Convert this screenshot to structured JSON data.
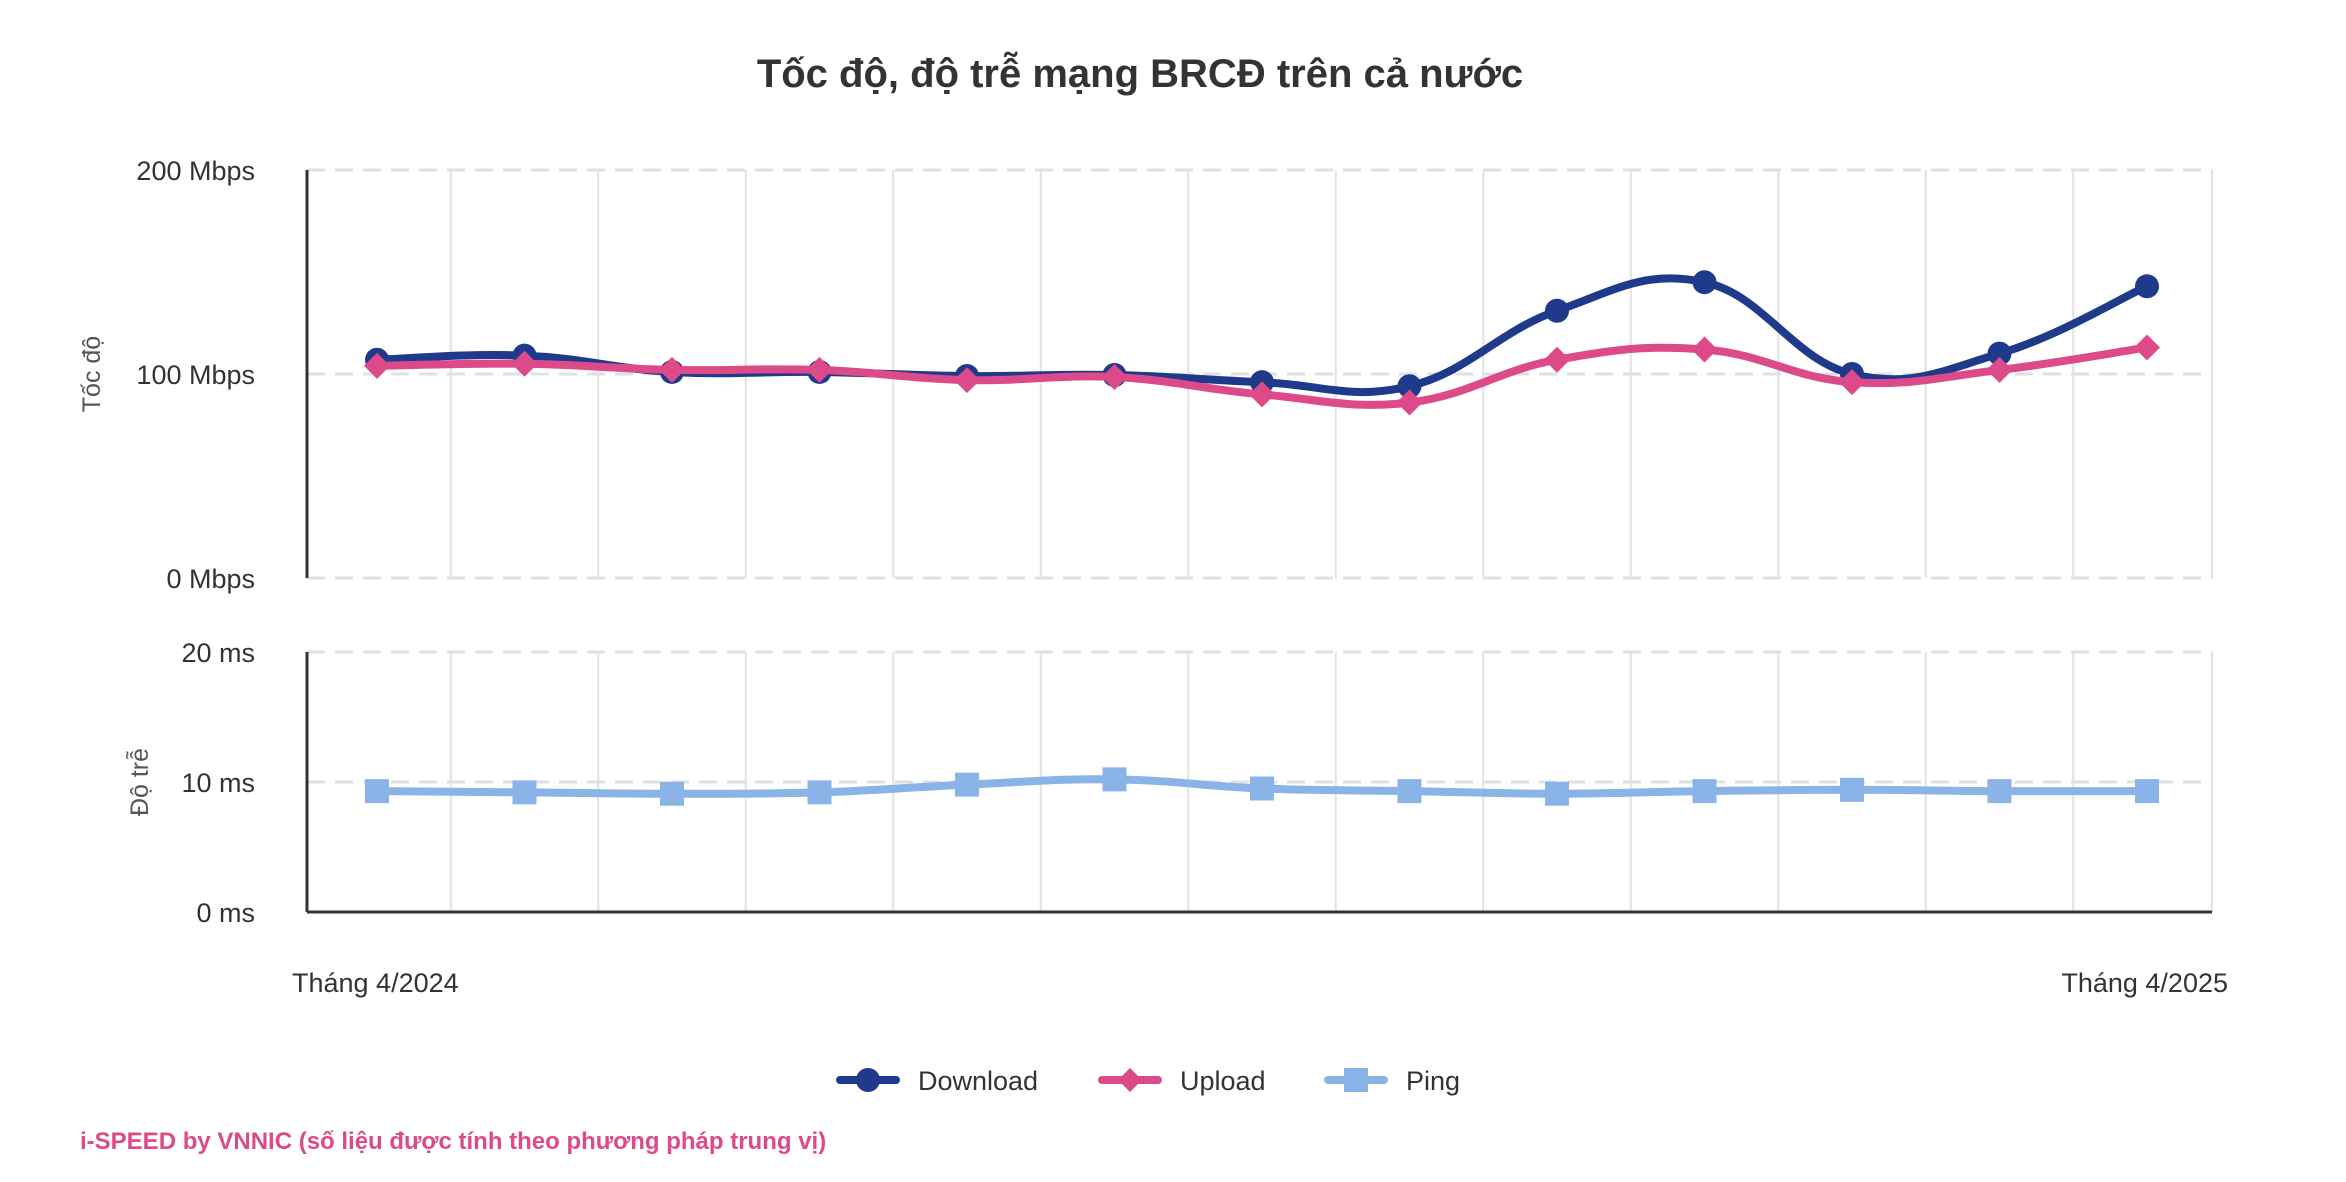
{
  "chart_data": {
    "type": "line",
    "title": "Tốc độ, độ trễ mạng BRCĐ trên cả nước",
    "x_labels": {
      "start": "Tháng 4/2024",
      "end": "Tháng 4/2025"
    },
    "x_count": 13,
    "grid": true,
    "legend_position": "bottom-center",
    "panels": [
      {
        "ylabel": "Tốc độ",
        "ylim": [
          0,
          200
        ],
        "ticks": [
          {
            "value": 0,
            "label": "0 Mbps"
          },
          {
            "value": 100,
            "label": "100 Mbps"
          },
          {
            "value": 200,
            "label": "200 Mbps"
          }
        ],
        "series": [
          {
            "name": "Download",
            "color": "#1f3a8a",
            "marker": "circle",
            "values": [
              107,
              109,
              101,
              101,
              99,
              99.5,
              96,
              94,
              131,
              145,
              100,
              110,
              143
            ]
          },
          {
            "name": "Upload",
            "color": "#dc4a8a",
            "marker": "diamond",
            "values": [
              104,
              105,
              102,
              102,
              97,
              98.5,
              90,
              86,
              107,
              112,
              96,
              102,
              113
            ]
          }
        ]
      },
      {
        "ylabel": "Độ trễ",
        "ylim": [
          0,
          20
        ],
        "ticks": [
          {
            "value": 0,
            "label": "0 ms"
          },
          {
            "value": 10,
            "label": "10 ms"
          },
          {
            "value": 20,
            "label": "20 ms"
          }
        ],
        "series": [
          {
            "name": "Ping",
            "color": "#8ab4e8",
            "marker": "square",
            "values": [
              9.3,
              9.2,
              9.1,
              9.2,
              9.8,
              10.2,
              9.5,
              9.3,
              9.1,
              9.3,
              9.4,
              9.3,
              9.3
            ]
          }
        ]
      }
    ]
  },
  "footer": {
    "source": "i-SPEED by VNNIC (số liệu được tính theo phương pháp trung vị)",
    "source_color": "#dc4a8a"
  }
}
